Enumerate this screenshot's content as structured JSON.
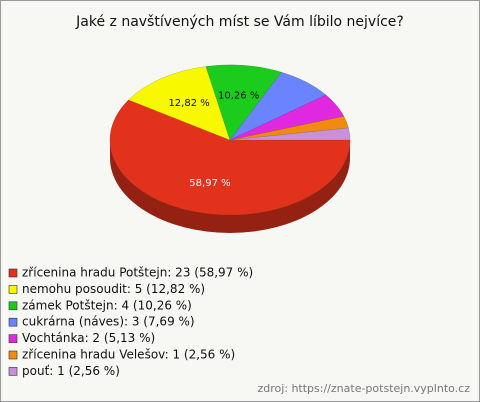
{
  "chart_data": {
    "type": "pie3d",
    "title": "Jaké z navštívených míst se Vám líbilo nejvíce?",
    "categories": [
      "zřícenina hradu Potštejn: 23 (58,97 %)",
      "nemohu posoudit: 5 (12,82 %)",
      "zámek Potštejn: 4 (10,26 %)",
      "cukrárna (náves): 3 (7,69 %)",
      "Vochtánka: 2 (5,13 %)",
      "zřícenina hradu Velešov: 1 (2,56 %)",
      "pouť: 1 (2,56 %)"
    ],
    "values": [
      58.97,
      12.82,
      10.26,
      7.69,
      5.13,
      2.56,
      2.56
    ],
    "value_labels": [
      "58,97 %",
      "12,82 %",
      "10,26 %",
      null,
      null,
      null,
      null
    ],
    "colors": [
      "#e3321c",
      "#f8f800",
      "#1ccc1c",
      "#6a84ff",
      "#e028e0",
      "#f08a10",
      "#c890d8"
    ],
    "source": "zdroj: https://znate-potstejn.vyplnto.cz"
  }
}
